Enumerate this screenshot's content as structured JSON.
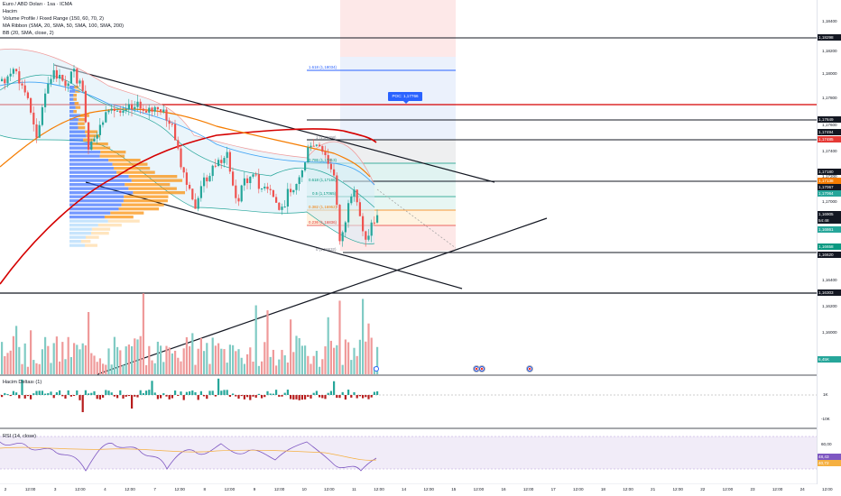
{
  "legend": {
    "line1": "Euro / ABD Doları · 1sa · ICMA",
    "line2": "Hacim",
    "line3": "Volume Profile / Fixed Range (150, 60, 70, 2)",
    "line4": "MA Ribbon (SMA, 20, SMA, 50, SMA, 100, SMA, 200)",
    "line5": "BB (20, SMA, close, 2)"
  },
  "price_axis": {
    "ticks": [
      "1,18400",
      "1,18200",
      "1,18000",
      "1,17800",
      "1,17600",
      "1,17400",
      "1,17200",
      "1,17000",
      "1,16800",
      "1,16600",
      "1,16400",
      "1,16200",
      "1,16000",
      "1,15800"
    ]
  },
  "price_tags": [
    {
      "label": "1,18298",
      "color": "#131722"
    },
    {
      "label": "1,17649",
      "color": "#131722"
    },
    {
      "label": "1,17494",
      "color": "#131722"
    },
    {
      "label": "1,17485",
      "color": "#e53935"
    },
    {
      "label": "1,17180",
      "color": "#131722"
    },
    {
      "label": "1,17138",
      "color": "#f57c00"
    },
    {
      "label": "1,17067",
      "color": "#131722"
    },
    {
      "label": "1,17064",
      "color": "#26a69a"
    },
    {
      "label": "1,16905",
      "color": "#131722"
    },
    {
      "label": "54:48",
      "color": "#131722"
    },
    {
      "label": "1,16861",
      "color": "#26a69a"
    },
    {
      "label": "1,16658",
      "color": "#089981"
    },
    {
      "label": "1,16620",
      "color": "#131722"
    },
    {
      "label": "1,16303",
      "color": "#131722"
    },
    {
      "label": "6,45K",
      "color": "#26a69a"
    }
  ],
  "fib_levels": [
    {
      "label": "1.618 (1,18034)",
      "color": "#2962ff"
    },
    {
      "label": "1 (1,17498)",
      "color": "#787b86"
    },
    {
      "label": "0.786 (1,17313)",
      "color": "#089981"
    },
    {
      "label": "0.618 (1,17168)",
      "color": "#089981"
    },
    {
      "label": "0.5 (1,17065)",
      "color": "#089981"
    },
    {
      "label": "0.382 (1,16962)",
      "color": "#f57c00"
    },
    {
      "label": "0.236 (1,16836)",
      "color": "#e53935"
    },
    {
      "label": "0 (1,16632)",
      "color": "#787b86"
    }
  ],
  "poc_label": "POC: 1,17766",
  "volume_delta": {
    "title": "Hacim Deltası (1)",
    "ticks": [
      "1K",
      "-10K"
    ]
  },
  "rsi": {
    "title": "RSI (14, close)",
    "ticks": [
      "60,00",
      "48,43",
      "40,72"
    ]
  },
  "time_axis": [
    "2",
    "12:00",
    "3",
    "12:00",
    "4",
    "12:00",
    "7",
    "12:00",
    "8",
    "12:00",
    "9",
    "12:00",
    "10",
    "12:00",
    "11",
    "12:00",
    "14",
    "12:00",
    "15",
    "12:00",
    "16",
    "12:00",
    "17",
    "12:00",
    "18",
    "12:00",
    "21",
    "12:00",
    "22",
    "12:00",
    "23",
    "12:00",
    "24",
    "12:00"
  ],
  "colors": {
    "up": "#26a69a",
    "down": "#ef5350",
    "ma_red": "#d50000",
    "ma_orange": "#f57c00",
    "accent": "#2962ff"
  }
}
